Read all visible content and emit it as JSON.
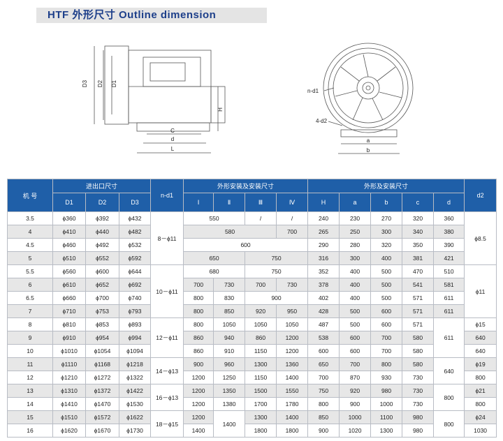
{
  "header": {
    "title": "HTF  外形尺寸  Outline dimension"
  },
  "drawing": {
    "side_labels": [
      "D3",
      "D2",
      "D1",
      "H",
      "C",
      "d",
      "L"
    ],
    "front_labels": [
      "n-d1",
      "4-d2",
      "a",
      "b"
    ]
  },
  "table": {
    "header_top": [
      "机 号",
      "进出口尺寸",
      "n-d1",
      "外形安装及安装尺寸",
      "外形及安装尺寸",
      "d2"
    ],
    "header_sub": [
      "D1",
      "D2",
      "D3",
      "Ⅰ",
      "Ⅱ",
      "Ⅲ",
      "Ⅳ",
      "H",
      "a",
      "b",
      "c",
      "d"
    ],
    "rows": [
      [
        "3.5",
        "ϕ360",
        "ϕ392",
        "ϕ432",
        "8－ϕ11",
        "550",
        "/",
        "/",
        "240",
        "230",
        "270",
        "320",
        "360",
        "ϕ8.5"
      ],
      [
        "4",
        "ϕ410",
        "ϕ440",
        "ϕ482",
        "580",
        "700",
        "265",
        "250",
        "300",
        "340",
        "380"
      ],
      [
        "4.5",
        "ϕ460",
        "ϕ492",
        "ϕ532",
        "600",
        "290",
        "280",
        "320",
        "350",
        "390"
      ],
      [
        "5",
        "ϕ510",
        "ϕ552",
        "ϕ592",
        "650",
        "750",
        "316",
        "300",
        "400",
        "381",
        "421"
      ],
      [
        "5.5",
        "ϕ560",
        "ϕ600",
        "ϕ644",
        "10－ϕ11",
        "680",
        "750",
        "352",
        "400",
        "500",
        "470",
        "510",
        "ϕ11"
      ],
      [
        "6",
        "ϕ610",
        "ϕ652",
        "ϕ692",
        "700",
        "730",
        "700",
        "730",
        "378",
        "400",
        "500",
        "541",
        "581"
      ],
      [
        "6.5",
        "ϕ660",
        "ϕ700",
        "ϕ740",
        "800",
        "830",
        "900",
        "402",
        "400",
        "500",
        "571",
        "611"
      ],
      [
        "7",
        "ϕ710",
        "ϕ753",
        "ϕ793",
        "800",
        "850",
        "920",
        "950",
        "428",
        "500",
        "600",
        "571",
        "611"
      ],
      [
        "8",
        "ϕ810",
        "ϕ853",
        "ϕ893",
        "12－ϕ11",
        "800",
        "1050",
        "1050",
        "1050",
        "487",
        "500",
        "600",
        "571",
        "611",
        "ϕ15"
      ],
      [
        "9",
        "ϕ910",
        "ϕ954",
        "ϕ994",
        "860",
        "940",
        "860",
        "1200",
        "538",
        "600",
        "700",
        "580",
        "640"
      ],
      [
        "10",
        "ϕ1010",
        "ϕ1054",
        "ϕ1094",
        "860",
        "910",
        "1150",
        "1200",
        "600",
        "600",
        "700",
        "580",
        "640"
      ],
      [
        "11",
        "ϕ1110",
        "ϕ1168",
        "ϕ1218",
        "14－ϕ13",
        "900",
        "960",
        "1300",
        "1360",
        "650",
        "700",
        "800",
        "580",
        "640",
        "ϕ19"
      ],
      [
        "12",
        "ϕ1210",
        "ϕ1272",
        "ϕ1322",
        "1200",
        "1250",
        "1150",
        "1400",
        "700",
        "870",
        "930",
        "730",
        "800"
      ],
      [
        "13",
        "ϕ1310",
        "ϕ1372",
        "ϕ1422",
        "16－ϕ13",
        "1200",
        "1350",
        "1500",
        "1550",
        "750",
        "920",
        "980",
        "730",
        "800",
        "ϕ21"
      ],
      [
        "14",
        "ϕ1410",
        "ϕ1470",
        "ϕ1530",
        "1200",
        "1380",
        "1700",
        "1780",
        "800",
        "900",
        "1000",
        "730",
        "800"
      ],
      [
        "15",
        "ϕ1510",
        "ϕ1572",
        "ϕ1622",
        "18－ϕ15",
        "1200",
        "1400",
        "1300",
        "1400",
        "850",
        "1000",
        "1100",
        "980",
        "800",
        "ϕ24"
      ],
      [
        "16",
        "ϕ1620",
        "ϕ1670",
        "ϕ1730",
        "1400",
        "1800",
        "1800",
        "900",
        "1020",
        "1300",
        "980",
        "1030"
      ]
    ]
  }
}
